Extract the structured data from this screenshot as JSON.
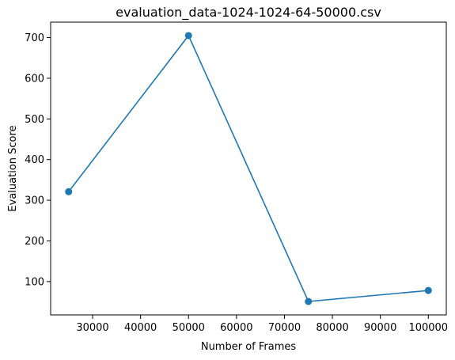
{
  "chart_data": {
    "type": "line",
    "title": "evaluation_data-1024-1024-64-50000.csv",
    "xlabel": "Number of Frames",
    "ylabel": "Evaluation Score",
    "x": [
      25000,
      50000,
      75000,
      100000
    ],
    "series": [
      {
        "values": [
          321,
          705,
          51,
          78
        ],
        "color": "#1f77b4",
        "marker": "circle"
      }
    ],
    "xlim": [
      21250,
      103750
    ],
    "ylim": [
      18,
      738
    ],
    "xticks": [
      30000,
      40000,
      50000,
      60000,
      70000,
      80000,
      90000,
      100000
    ],
    "yticks": [
      100,
      200,
      300,
      400,
      500,
      600,
      700
    ],
    "grid": false,
    "legend": "none"
  }
}
